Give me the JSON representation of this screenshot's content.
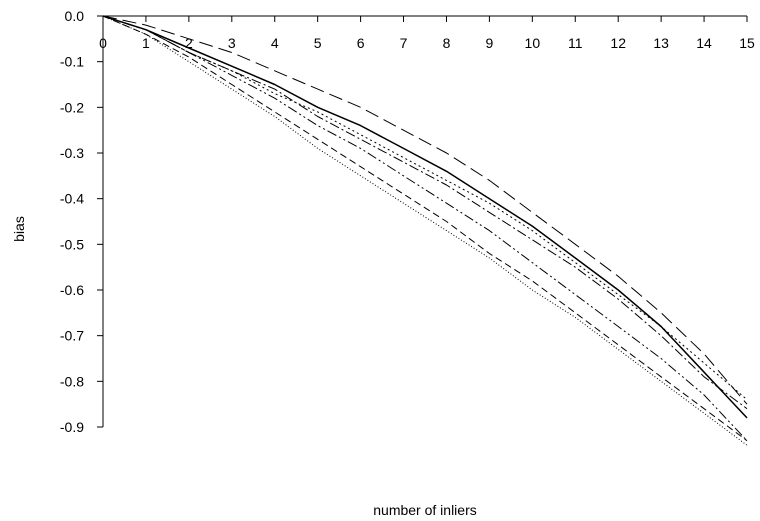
{
  "chart_data": {
    "type": "line",
    "xlabel": "number of inliers",
    "ylabel": "bias",
    "xlim": [
      0,
      15
    ],
    "ylim": [
      -0.9,
      0.0
    ],
    "xticks": [
      "0",
      "1",
      "2",
      "3",
      "4",
      "5",
      "6",
      "7",
      "8",
      "9",
      "10",
      "11",
      "12",
      "13",
      "14",
      "15"
    ],
    "yticks": [
      "0.0",
      "-0.1",
      "-0.2",
      "-0.3",
      "-0.4",
      "-0.5",
      "-0.6",
      "-0.7",
      "-0.8",
      "-0.9"
    ],
    "x": [
      0,
      1,
      2,
      3,
      4,
      5,
      6,
      7,
      8,
      9,
      10,
      11,
      12,
      13,
      14,
      15
    ],
    "grid": false,
    "legend": "none",
    "series": [
      {
        "style": "solid",
        "values": [
          0,
          -0.03,
          -0.07,
          -0.11,
          -0.15,
          -0.2,
          -0.24,
          -0.29,
          -0.34,
          -0.4,
          -0.46,
          -0.53,
          -0.6,
          -0.68,
          -0.78,
          -0.88
        ]
      },
      {
        "style": "long-dash",
        "values": [
          0,
          -0.02,
          -0.05,
          -0.08,
          -0.12,
          -0.16,
          -0.2,
          -0.25,
          -0.3,
          -0.36,
          -0.43,
          -0.5,
          -0.57,
          -0.65,
          -0.74,
          -0.85
        ]
      },
      {
        "style": "dot",
        "values": [
          0,
          -0.03,
          -0.08,
          -0.12,
          -0.17,
          -0.21,
          -0.26,
          -0.31,
          -0.36,
          -0.41,
          -0.47,
          -0.54,
          -0.61,
          -0.68,
          -0.76,
          -0.84
        ]
      },
      {
        "style": "dash-dot",
        "values": [
          0,
          -0.03,
          -0.08,
          -0.12,
          -0.16,
          -0.22,
          -0.27,
          -0.32,
          -0.37,
          -0.43,
          -0.49,
          -0.55,
          -0.62,
          -0.7,
          -0.79,
          -0.86
        ]
      },
      {
        "style": "dash-dot-dot",
        "values": [
          0,
          -0.03,
          -0.08,
          -0.13,
          -0.18,
          -0.24,
          -0.29,
          -0.35,
          -0.41,
          -0.47,
          -0.54,
          -0.61,
          -0.68,
          -0.75,
          -0.83,
          -0.93
        ]
      },
      {
        "style": "short-dash",
        "values": [
          0,
          -0.04,
          -0.09,
          -0.15,
          -0.21,
          -0.27,
          -0.33,
          -0.39,
          -0.45,
          -0.52,
          -0.58,
          -0.65,
          -0.72,
          -0.79,
          -0.86,
          -0.93
        ]
      },
      {
        "style": "fine-dot",
        "values": [
          0,
          -0.04,
          -0.1,
          -0.16,
          -0.22,
          -0.29,
          -0.35,
          -0.41,
          -0.47,
          -0.53,
          -0.6,
          -0.66,
          -0.73,
          -0.8,
          -0.87,
          -0.94
        ]
      }
    ]
  }
}
